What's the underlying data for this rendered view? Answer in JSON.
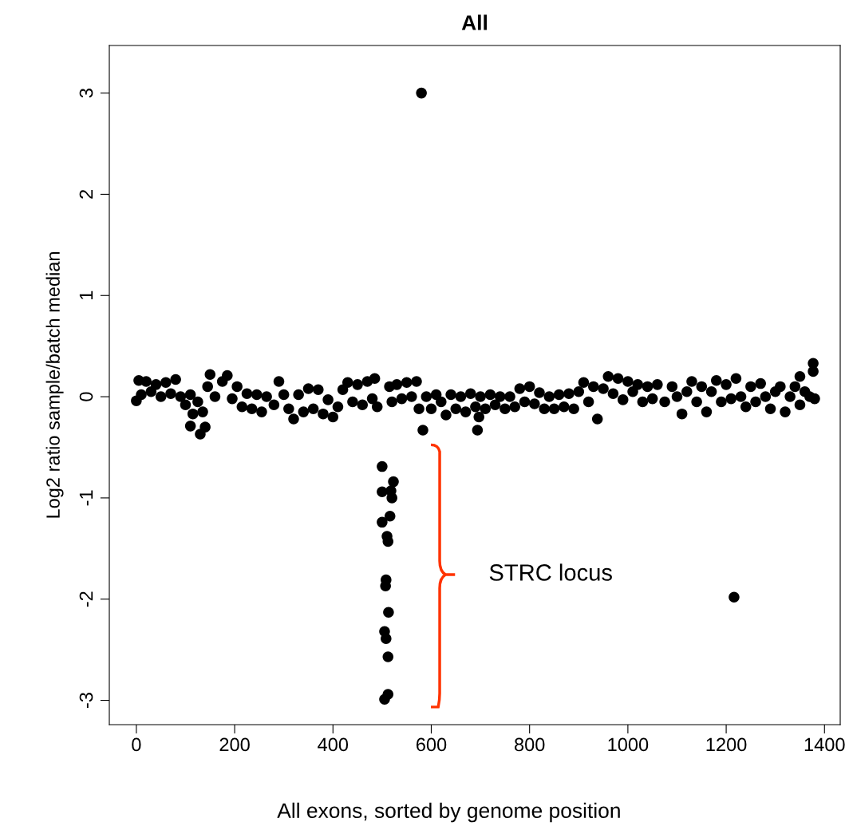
{
  "chart_data": {
    "type": "scatter",
    "title": "All",
    "xlabel": "All exons, sorted by genome position",
    "ylabel": "Log2 ratio sample/batch median",
    "x": [
      0,
      5,
      10,
      20,
      30,
      40,
      50,
      60,
      70,
      80,
      90,
      100,
      110,
      115,
      125,
      135,
      145,
      150,
      160,
      175,
      185,
      195,
      205,
      215,
      225,
      235,
      245,
      255,
      265,
      280,
      290,
      300,
      310,
      320,
      330,
      340,
      350,
      360,
      370,
      380,
      390,
      400,
      410,
      420,
      430,
      440,
      450,
      460,
      470,
      480,
      485,
      490,
      515,
      520,
      530,
      540,
      550,
      560,
      570,
      575,
      590,
      600,
      610,
      620,
      630,
      640,
      650,
      660,
      670,
      680,
      690,
      700,
      710,
      720,
      730,
      740,
      750,
      760,
      770,
      780,
      790,
      800,
      810,
      820,
      830,
      840,
      850,
      860,
      870,
      880,
      890,
      900,
      910,
      920,
      930,
      938,
      950,
      960,
      970,
      980,
      990,
      1000,
      1010,
      1020,
      1030,
      1040,
      1050,
      1060,
      1075,
      1090,
      1100,
      1110,
      1120,
      1130,
      1140,
      1150,
      1160,
      1170,
      1180,
      1190,
      1200,
      1210,
      1220,
      1230,
      1240,
      1250,
      1260,
      1270,
      1280,
      1290,
      1300,
      1310,
      1320,
      1330,
      1340,
      1350,
      1360,
      1370,
      1380,
      110,
      130,
      140,
      580,
      583,
      694,
      697,
      1216,
      1377,
      1377,
      1350,
      500,
      500,
      523,
      518,
      520,
      500,
      516,
      510,
      512,
      508,
      507,
      513,
      505,
      508,
      512,
      512,
      505
    ],
    "values": [
      -0.04,
      0.16,
      0.02,
      0.15,
      0.05,
      0.12,
      0.0,
      0.14,
      0.03,
      0.17,
      0.0,
      -0.08,
      0.02,
      -0.17,
      -0.05,
      -0.15,
      0.1,
      0.22,
      0.0,
      0.15,
      0.21,
      -0.02,
      0.1,
      -0.1,
      0.03,
      -0.12,
      0.02,
      -0.15,
      0.0,
      -0.08,
      0.15,
      0.02,
      -0.12,
      -0.22,
      0.02,
      -0.15,
      0.08,
      -0.12,
      0.07,
      -0.17,
      -0.03,
      -0.2,
      -0.1,
      0.07,
      0.14,
      -0.05,
      0.12,
      -0.08,
      0.15,
      -0.02,
      0.18,
      -0.1,
      0.1,
      -0.05,
      0.12,
      -0.02,
      0.14,
      0.0,
      0.15,
      -0.12,
      0.0,
      -0.12,
      0.02,
      -0.05,
      -0.18,
      0.02,
      -0.12,
      0.0,
      -0.15,
      0.03,
      -0.1,
      0.0,
      -0.12,
      0.02,
      -0.08,
      0.0,
      -0.12,
      0.0,
      -0.1,
      0.08,
      -0.05,
      0.1,
      -0.07,
      0.04,
      -0.12,
      0.0,
      -0.12,
      0.02,
      -0.1,
      0.03,
      -0.12,
      0.05,
      0.14,
      -0.05,
      0.1,
      -0.22,
      0.08,
      0.2,
      0.03,
      0.18,
      -0.03,
      0.15,
      0.05,
      0.12,
      -0.05,
      0.1,
      -0.02,
      0.12,
      -0.05,
      0.1,
      0.0,
      -0.17,
      0.05,
      0.15,
      -0.05,
      0.1,
      -0.15,
      0.05,
      0.16,
      -0.05,
      0.12,
      -0.02,
      0.18,
      0.0,
      -0.1,
      0.1,
      -0.05,
      0.13,
      0.0,
      -0.12,
      0.05,
      0.1,
      -0.15,
      0.0,
      0.1,
      -0.08,
      0.05,
      0.0,
      -0.02,
      -0.29,
      -0.37,
      -0.3,
      3.0,
      -0.33,
      -0.33,
      -0.2,
      -1.98,
      0.33,
      0.25,
      0.2,
      -0.69,
      -0.94,
      -0.84,
      -0.93,
      -1.0,
      -1.24,
      -1.18,
      -1.38,
      -1.43,
      -1.81,
      -1.87,
      -2.13,
      -2.32,
      -2.39,
      -2.57,
      -2.94,
      -2.99
    ],
    "color": "#000000",
    "marker": "circle",
    "xlim": [
      -55,
      1432
    ],
    "ylim": [
      -3.24,
      3.47
    ],
    "xticks": [
      0,
      200,
      400,
      600,
      800,
      1000,
      1200,
      1400
    ],
    "yticks": [
      -3,
      -2,
      -1,
      0,
      1,
      2,
      3
    ],
    "grid": false,
    "annotations": [
      "STRC locus"
    ]
  }
}
